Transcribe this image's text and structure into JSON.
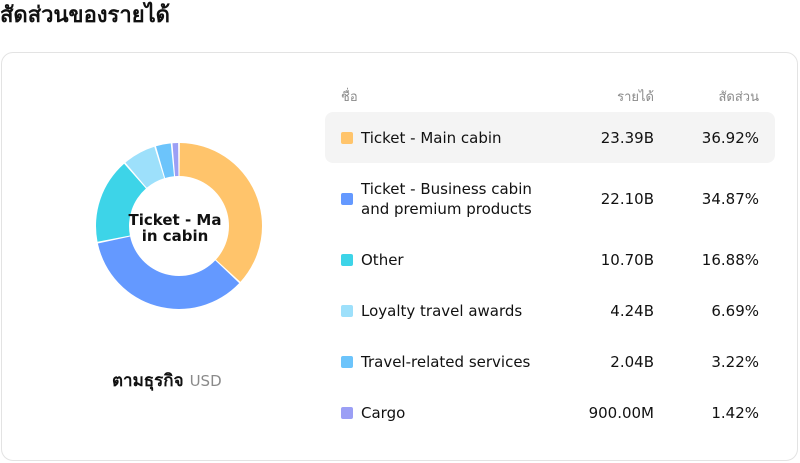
{
  "page": {
    "title": "สัดส่วนของรายได้"
  },
  "table": {
    "headers": {
      "name": "ชื่อ",
      "revenue": "รายได้",
      "share": "สัดส่วน"
    }
  },
  "donut": {
    "center_label_lines": [
      "Ticket - Ma",
      "in cabin"
    ]
  },
  "group": {
    "name": "ตามธุรกิจ",
    "currency": "USD"
  },
  "chart_data": {
    "type": "pie",
    "categories": [
      "Ticket - Main cabin",
      "Ticket - Business cabin and premium products",
      "Other",
      "Loyalty travel awards",
      "Travel-related services",
      "Cargo"
    ],
    "values": [
      36.92,
      34.87,
      16.88,
      6.69,
      3.22,
      1.42
    ],
    "revenue_labels": [
      "23.39B",
      "22.10B",
      "10.70B",
      "4.24B",
      "2.04B",
      "900.00M"
    ],
    "share_labels": [
      "36.92%",
      "34.87%",
      "16.88%",
      "6.69%",
      "3.22%",
      "1.42%"
    ],
    "colors": [
      "#ffc46b",
      "#6499ff",
      "#3dd4e8",
      "#9de0fb",
      "#6cc4fb",
      "#9b9ff5"
    ],
    "highlighted_index": 0
  }
}
